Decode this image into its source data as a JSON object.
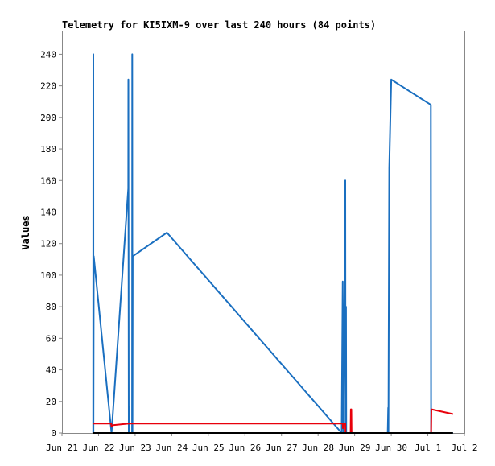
{
  "chart_data": {
    "type": "line",
    "title": "Telemetry for KI5IXM-9 over last 240 hours (84 points)",
    "xlabel": "",
    "ylabel": "Values",
    "x_tick_labels": [
      "Jun 21",
      "Jun 22",
      "Jun 23",
      "Jun 24",
      "Jun 25",
      "Jun 26",
      "Jun 27",
      "Jun 28",
      "Jun 29",
      "Jun 30",
      "Jul 1",
      "Jul 2"
    ],
    "x_range": [
      "2024-06-21 00:00",
      "2024-07-02 00:00"
    ],
    "ylim": [
      0,
      255
    ],
    "y_ticks": [
      0,
      20,
      40,
      60,
      80,
      100,
      120,
      140,
      160,
      180,
      200,
      220,
      240
    ],
    "grid": false,
    "series": [
      {
        "color": "#1a6fc0",
        "points": [
          [
            "2024-06-21 20:30",
            0
          ],
          [
            "2024-06-21 20:35",
            240
          ],
          [
            "2024-06-21 20:40",
            0
          ],
          [
            "2024-06-21 20:50",
            112
          ],
          [
            "2024-06-22 08:30",
            0
          ],
          [
            "2024-06-22 19:30",
            155
          ],
          [
            "2024-06-22 19:35",
            224
          ],
          [
            "2024-06-22 19:50",
            0
          ],
          [
            "2024-06-22 20:00",
            17
          ],
          [
            "2024-06-22 20:05",
            0
          ],
          [
            "2024-06-22 22:00",
            0
          ],
          [
            "2024-06-22 22:05",
            240
          ],
          [
            "2024-06-22 22:15",
            0
          ],
          [
            "2024-06-22 22:25",
            112
          ],
          [
            "2024-06-23 20:50",
            127
          ],
          [
            "2024-06-28 15:30",
            0
          ],
          [
            "2024-06-28 16:10",
            96
          ],
          [
            "2024-06-28 16:20",
            28
          ],
          [
            "2024-06-28 16:40",
            0
          ],
          [
            "2024-06-28 17:50",
            160
          ],
          [
            "2024-06-28 18:00",
            0
          ],
          [
            "2024-06-28 18:20",
            80
          ],
          [
            "2024-06-28 18:30",
            0
          ],
          [
            "2024-06-29 21:40",
            0
          ],
          [
            "2024-06-29 22:00",
            16
          ],
          [
            "2024-06-29 22:10",
            0
          ],
          [
            "2024-06-29 22:20",
            57
          ],
          [
            "2024-06-29 22:40",
            168
          ],
          [
            "2024-06-30 00:00",
            224
          ],
          [
            "2024-07-01 02:00",
            208
          ],
          [
            "2024-07-01 02:10",
            0
          ],
          [
            "2024-07-01 16:30",
            0
          ]
        ]
      },
      {
        "color": "#e8000b",
        "points": [
          [
            "2024-06-21 20:40",
            6
          ],
          [
            "2024-06-22 08:20",
            6
          ],
          [
            "2024-06-22 08:30",
            4
          ],
          [
            "2024-06-22 09:30",
            5
          ],
          [
            "2024-06-22 20:00",
            6
          ],
          [
            "2024-06-28 16:10",
            6
          ],
          [
            "2024-06-28 16:20",
            3
          ],
          [
            "2024-06-28 16:40",
            6
          ],
          [
            "2024-06-28 17:50",
            6
          ],
          [
            "2024-06-28 18:00",
            0
          ],
          [
            "2024-06-28 18:30",
            0
          ],
          [
            "2024-06-28 21:20",
            0
          ],
          [
            "2024-06-28 21:30",
            15
          ],
          [
            "2024-06-28 21:50",
            15
          ],
          [
            "2024-06-28 22:00",
            0
          ],
          [
            "2024-07-01 02:10",
            0
          ],
          [
            "2024-07-01 02:20",
            15
          ],
          [
            "2024-07-01 16:30",
            12
          ]
        ]
      },
      {
        "color": "#000000",
        "points": [
          [
            "2024-06-21 20:30",
            0
          ],
          [
            "2024-07-01 16:30",
            0
          ]
        ]
      }
    ]
  }
}
